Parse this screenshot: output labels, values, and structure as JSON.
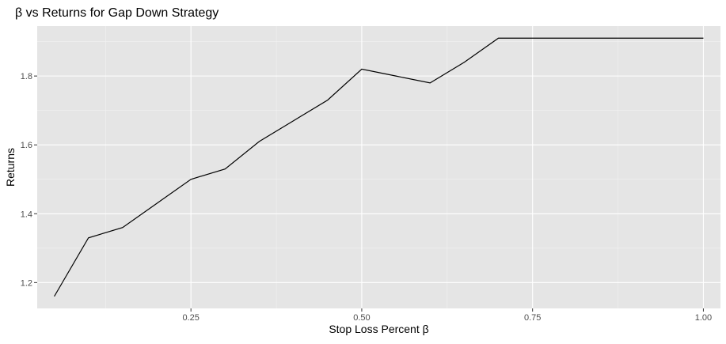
{
  "chart_data": {
    "type": "line",
    "title": "β vs Returns for Gap Down Strategy",
    "xlabel": "Stop Loss Percent β",
    "ylabel": "Returns",
    "xlim": [
      0.025,
      1.025
    ],
    "ylim": [
      1.125,
      1.945
    ],
    "x_ticks": [
      0.25,
      0.5,
      0.75,
      1.0
    ],
    "x_tick_labels": [
      "0.25",
      "0.50",
      "0.75",
      "1.00"
    ],
    "y_ticks": [
      1.2,
      1.4,
      1.6,
      1.8
    ],
    "y_tick_labels": [
      "1.2",
      "1.4",
      "1.6",
      "1.8"
    ],
    "grid": true,
    "x": [
      0.05,
      0.1,
      0.15,
      0.2,
      0.25,
      0.3,
      0.35,
      0.4,
      0.45,
      0.5,
      0.55,
      0.6,
      0.65,
      0.7,
      0.75,
      0.8,
      0.85,
      0.9,
      0.95,
      1.0
    ],
    "y": [
      1.16,
      1.33,
      1.36,
      1.43,
      1.5,
      1.53,
      1.61,
      1.67,
      1.73,
      1.82,
      1.8,
      1.78,
      1.84,
      1.91,
      1.91,
      1.91,
      1.91,
      1.91,
      1.91,
      1.91
    ],
    "line_color": "#000000",
    "panel_color": "#e5e5e5"
  }
}
